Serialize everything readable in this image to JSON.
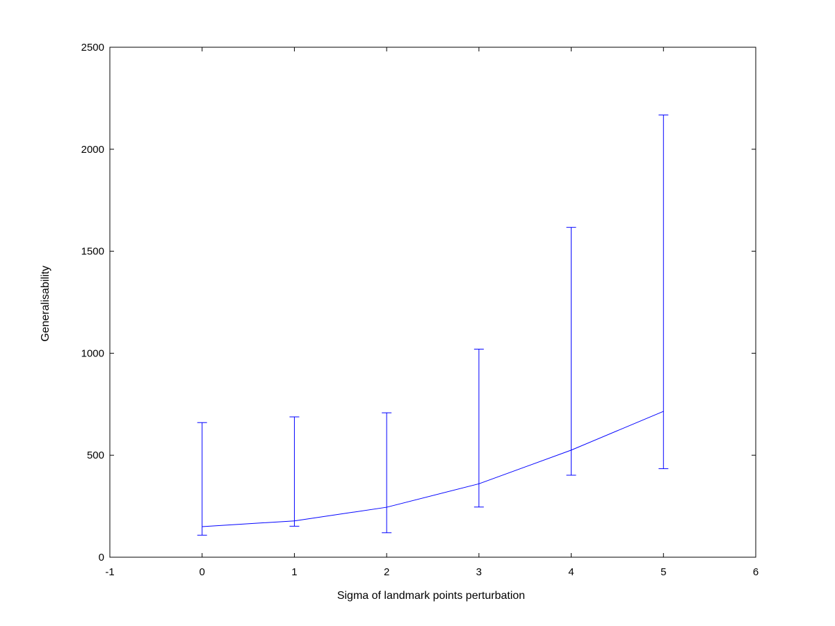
{
  "chart_data": {
    "type": "line",
    "title": "",
    "xlabel": "Sigma of landmark points perturbation",
    "ylabel": "Generalisability",
    "xlim": [
      -1,
      6
    ],
    "ylim": [
      0,
      2500
    ],
    "xticks": [
      -1,
      0,
      1,
      2,
      3,
      4,
      5,
      6
    ],
    "yticks": [
      0,
      500,
      1000,
      1500,
      2000,
      2500
    ],
    "grid": false,
    "legend": "none",
    "series": [
      {
        "color": "#0000ff",
        "x": [
          0,
          1,
          2,
          3,
          4,
          5
        ],
        "y": [
          150,
          178,
          245,
          360,
          525,
          715
        ],
        "error_lower": [
          108,
          152,
          120,
          246,
          402,
          434
        ],
        "error_upper": [
          660,
          688,
          708,
          1020,
          1617,
          2168
        ]
      }
    ]
  }
}
